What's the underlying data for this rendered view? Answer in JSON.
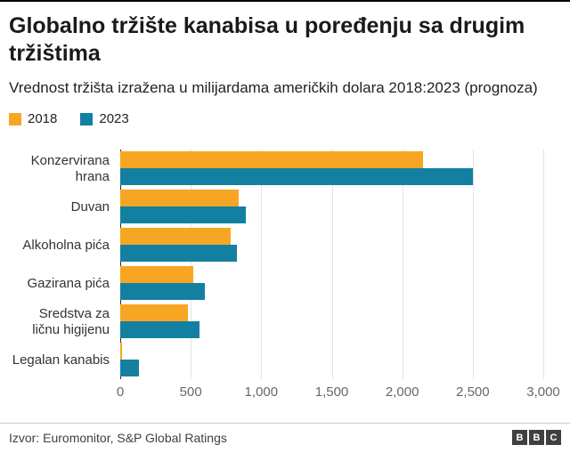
{
  "header": {
    "title": "Globalno tržište kanabisa u poređenju sa drugim tržištima",
    "subtitle": "Vrednost tržišta izražena u milijardama američkih dolara 2018:2023 (prognoza)"
  },
  "legend": [
    {
      "label": "2018",
      "color": "#F6A623"
    },
    {
      "label": "2023",
      "color": "#1380A1"
    }
  ],
  "chart_data": {
    "type": "bar",
    "orientation": "horizontal",
    "title": "Globalno tržište kanabisa u poređenju sa drugim tržištima",
    "subtitle": "Vrednost tržišta izražena u milijardama američkih dolara 2018:2023 (prognoza)",
    "categories": [
      "Konzervirana hrana",
      "Duvan",
      "Alkoholna pića",
      "Gazirana pića",
      "Sredstva za ličnu higijenu",
      "Legalan kanabis"
    ],
    "series": [
      {
        "name": "2018",
        "color": "#F6A623",
        "values": [
          2150,
          840,
          780,
          520,
          480,
          12
        ]
      },
      {
        "name": "2023",
        "color": "#1380A1",
        "values": [
          2500,
          890,
          830,
          600,
          560,
          130
        ]
      }
    ],
    "xlim": [
      0,
      3000
    ],
    "xticks": [
      0,
      500,
      1000,
      1500,
      2000,
      2500,
      3000
    ],
    "xtick_labels": [
      "0",
      "500",
      "1,000",
      "1,500",
      "2,000",
      "2,500",
      "3,000"
    ],
    "grid": "vertical",
    "legend_position": "top"
  },
  "footer": {
    "source": "Izvor: Euromonitor, S&P Global Ratings",
    "logo_blocks": [
      "B",
      "B",
      "C"
    ]
  }
}
